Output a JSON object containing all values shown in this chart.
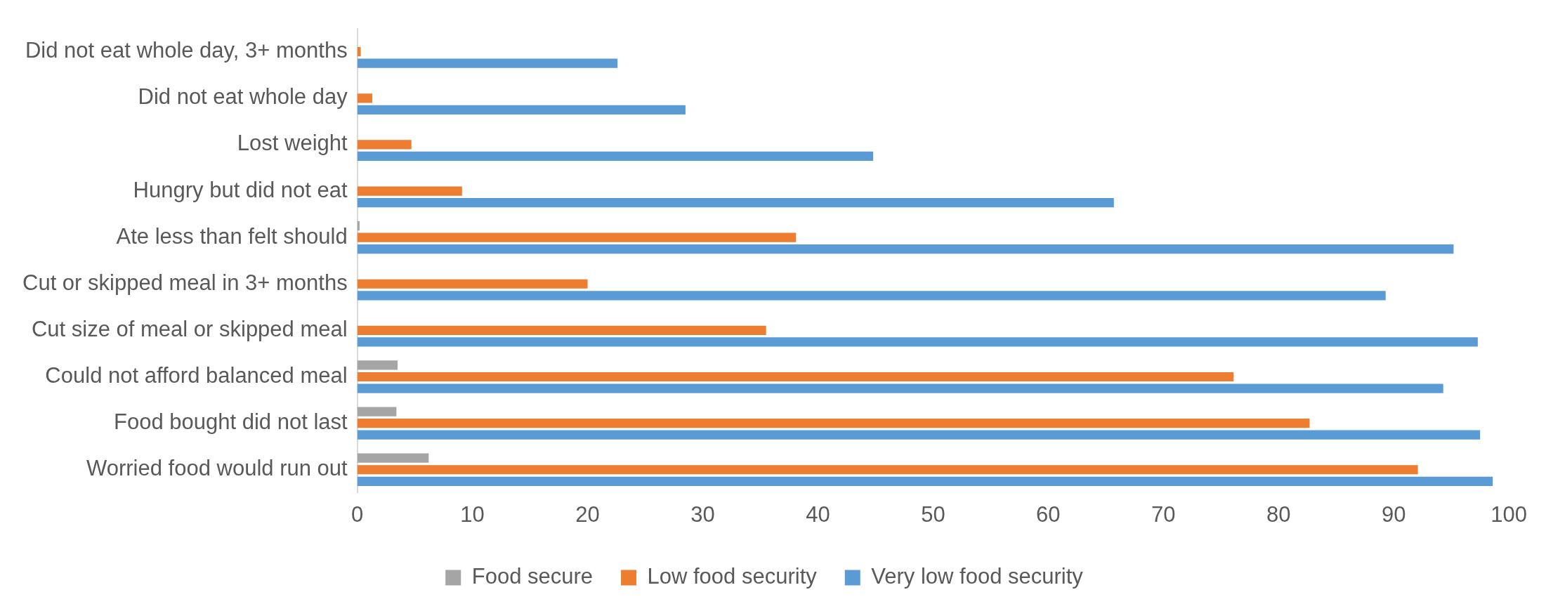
{
  "chart_data": {
    "type": "bar",
    "orientation": "horizontal",
    "categories": [
      "Did not eat whole day, 3+ months",
      "Did not eat whole day",
      "Lost weight",
      "Hungry but did not eat",
      "Ate less than felt should",
      "Cut or skipped meal in 3+ months",
      "Cut size of meal or skipped meal",
      "Could not afford balanced meal",
      "Food bought did not last",
      "Worried food would run out"
    ],
    "series": [
      {
        "name": "Food secure",
        "color": "#a5a5a5",
        "values": [
          null,
          null,
          null,
          null,
          0.2,
          null,
          null,
          3.5,
          3.4,
          6.2
        ]
      },
      {
        "name": "Low food security",
        "color": "#ed7d31",
        "values": [
          0.3,
          1.3,
          4.7,
          9.1,
          38.1,
          20.0,
          35.5,
          76.1,
          82.7,
          92.1
        ]
      },
      {
        "name": "Very low food security",
        "color": "#5b9bd5",
        "values": [
          22.6,
          28.5,
          44.8,
          65.7,
          95.2,
          89.3,
          97.3,
          94.3,
          97.5,
          98.6
        ]
      }
    ],
    "xlim": [
      0,
      100
    ],
    "xticks": [
      0,
      10,
      20,
      30,
      40,
      50,
      60,
      70,
      80,
      90,
      100
    ],
    "grid": false,
    "legend": "bottom"
  }
}
